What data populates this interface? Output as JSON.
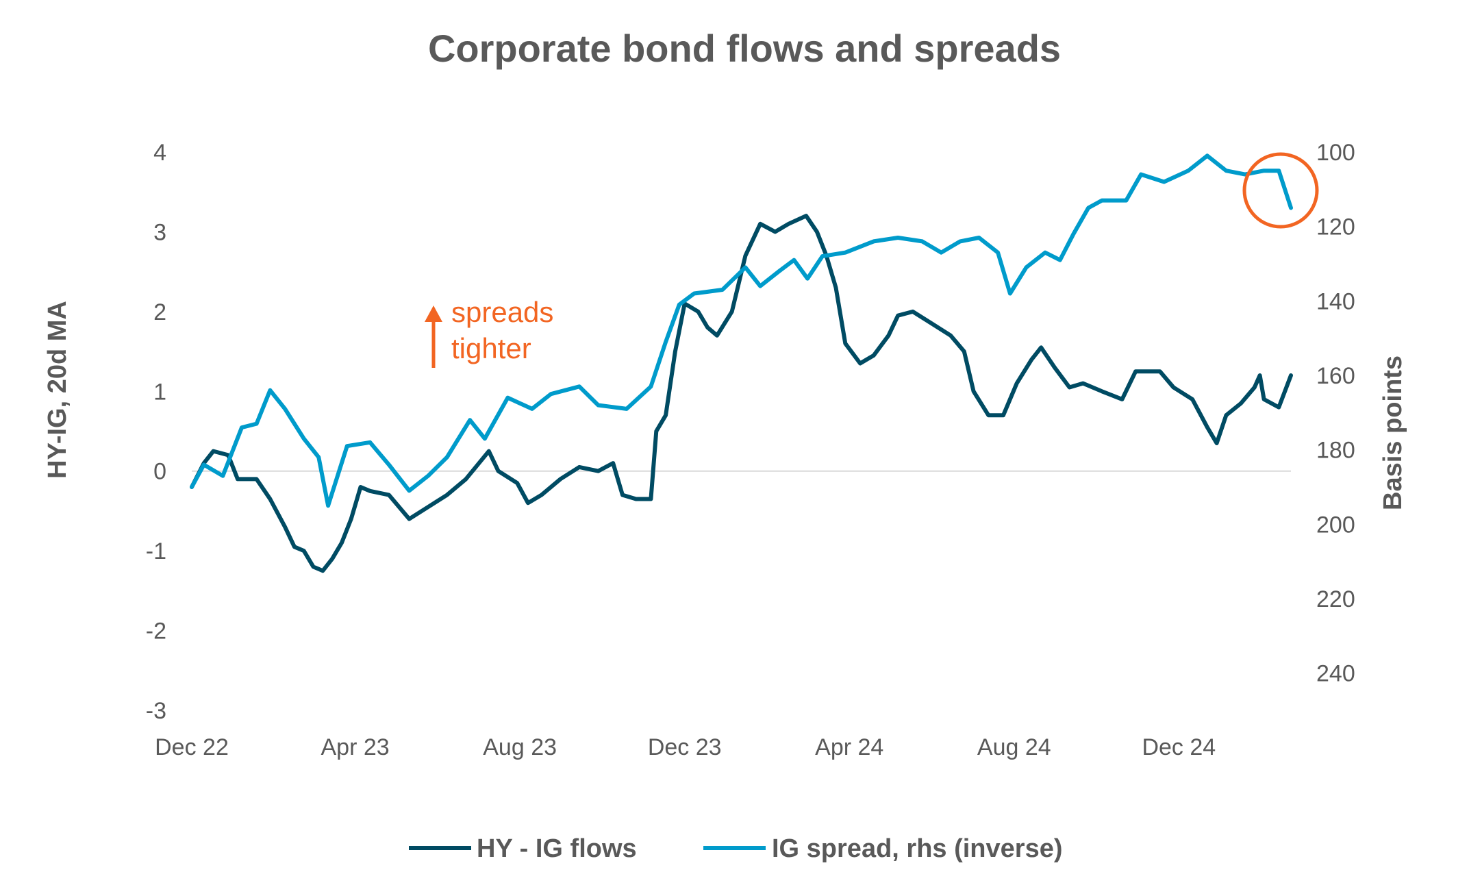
{
  "chart_data": {
    "type": "line",
    "title": "Corporate bond flows and spreads",
    "ylabel": "HY-IG, 20d MA",
    "y2label": "Basis points",
    "ylim": [
      -3,
      4
    ],
    "y2lim": [
      100,
      250
    ],
    "y2_inverted": true,
    "yticks": [
      "-3",
      "-2",
      "-1",
      "0",
      "1",
      "2",
      "3",
      "4"
    ],
    "y2ticks": [
      "100",
      "120",
      "140",
      "160",
      "180",
      "200",
      "220",
      "240"
    ],
    "xlim": [
      "2022-12-01",
      "2025-02-22"
    ],
    "xticks": [
      {
        "date": "2022-12-01",
        "label": "Dec 22"
      },
      {
        "date": "2023-04-01",
        "label": "Apr 23"
      },
      {
        "date": "2023-08-01",
        "label": "Aug 23"
      },
      {
        "date": "2023-12-01",
        "label": "Dec 23"
      },
      {
        "date": "2024-04-01",
        "label": "Apr 24"
      },
      {
        "date": "2024-08-01",
        "label": "Aug 24"
      },
      {
        "date": "2024-12-01",
        "label": "Dec 24"
      }
    ],
    "grid": false,
    "zero_line": true,
    "legend_position": "bottom",
    "annotation": {
      "text_line1": "spreads",
      "text_line2": "tighter",
      "arrow": "up",
      "color": "#F26522"
    },
    "highlight_circle": {
      "around": "latest IG spread values",
      "color": "#F26522"
    },
    "series": [
      {
        "name": "HY - IG flows",
        "axis": "left",
        "color": "#004B63",
        "points": [
          [
            "2022-12-01",
            -0.2
          ],
          [
            "2022-12-10",
            0.1
          ],
          [
            "2022-12-17",
            0.25
          ],
          [
            "2022-12-28",
            0.2
          ],
          [
            "2023-01-04",
            -0.1
          ],
          [
            "2023-01-18",
            -0.1
          ],
          [
            "2023-01-28",
            -0.35
          ],
          [
            "2023-02-08",
            -0.7
          ],
          [
            "2023-02-15",
            -0.95
          ],
          [
            "2023-02-22",
            -1.0
          ],
          [
            "2023-03-01",
            -1.2
          ],
          [
            "2023-03-08",
            -1.25
          ],
          [
            "2023-03-15",
            -1.1
          ],
          [
            "2023-03-22",
            -0.9
          ],
          [
            "2023-03-29",
            -0.6
          ],
          [
            "2023-04-05",
            -0.2
          ],
          [
            "2023-04-12",
            -0.25
          ],
          [
            "2023-04-26",
            -0.3
          ],
          [
            "2023-05-11",
            -0.6
          ],
          [
            "2023-05-25",
            -0.45
          ],
          [
            "2023-06-08",
            -0.3
          ],
          [
            "2023-06-22",
            -0.1
          ],
          [
            "2023-07-09",
            0.25
          ],
          [
            "2023-07-16",
            0.0
          ],
          [
            "2023-07-30",
            -0.15
          ],
          [
            "2023-08-07",
            -0.4
          ],
          [
            "2023-08-17",
            -0.3
          ],
          [
            "2023-08-31",
            -0.1
          ],
          [
            "2023-09-14",
            0.05
          ],
          [
            "2023-09-28",
            0.0
          ],
          [
            "2023-10-09",
            0.1
          ],
          [
            "2023-10-16",
            -0.3
          ],
          [
            "2023-10-26",
            -0.35
          ],
          [
            "2023-11-06",
            -0.35
          ],
          [
            "2023-11-10",
            0.5
          ],
          [
            "2023-11-17",
            0.7
          ],
          [
            "2023-11-24",
            1.5
          ],
          [
            "2023-12-01",
            2.1
          ],
          [
            "2023-12-11",
            2.0
          ],
          [
            "2023-12-18",
            1.8
          ],
          [
            "2023-12-25",
            1.7
          ],
          [
            "2024-01-05",
            2.0
          ],
          [
            "2024-01-15",
            2.7
          ],
          [
            "2024-01-26",
            3.1
          ],
          [
            "2024-02-06",
            3.0
          ],
          [
            "2024-02-16",
            3.1
          ],
          [
            "2024-02-29",
            3.2
          ],
          [
            "2024-03-08",
            3.0
          ],
          [
            "2024-03-15",
            2.7
          ],
          [
            "2024-03-22",
            2.3
          ],
          [
            "2024-03-29",
            1.6
          ],
          [
            "2024-04-09",
            1.35
          ],
          [
            "2024-04-19",
            1.45
          ],
          [
            "2024-04-30",
            1.7
          ],
          [
            "2024-05-07",
            1.95
          ],
          [
            "2024-05-18",
            2.0
          ],
          [
            "2024-06-01",
            1.85
          ],
          [
            "2024-06-15",
            1.7
          ],
          [
            "2024-06-25",
            1.5
          ],
          [
            "2024-07-02",
            1.0
          ],
          [
            "2024-07-13",
            0.7
          ],
          [
            "2024-07-24",
            0.7
          ],
          [
            "2024-08-03",
            1.1
          ],
          [
            "2024-08-14",
            1.4
          ],
          [
            "2024-08-21",
            1.55
          ],
          [
            "2024-08-31",
            1.3
          ],
          [
            "2024-09-11",
            1.05
          ],
          [
            "2024-09-21",
            1.1
          ],
          [
            "2024-10-05",
            1.0
          ],
          [
            "2024-10-20",
            0.9
          ],
          [
            "2024-10-30",
            1.25
          ],
          [
            "2024-11-17",
            1.25
          ],
          [
            "2024-11-27",
            1.05
          ],
          [
            "2024-12-11",
            0.9
          ],
          [
            "2024-12-22",
            0.55
          ],
          [
            "2024-12-29",
            0.35
          ],
          [
            "2025-01-05",
            0.7
          ],
          [
            "2025-01-16",
            0.85
          ],
          [
            "2025-01-26",
            1.05
          ],
          [
            "2025-01-30",
            1.2
          ],
          [
            "2025-02-02",
            0.9
          ],
          [
            "2025-02-13",
            0.8
          ],
          [
            "2025-02-22",
            1.2
          ]
        ]
      },
      {
        "name": "IG spread, rhs (inverse)",
        "axis": "right",
        "color": "#009BCB",
        "points": [
          [
            "2022-12-01",
            190
          ],
          [
            "2022-12-10",
            184
          ],
          [
            "2022-12-24",
            187
          ],
          [
            "2023-01-07",
            174
          ],
          [
            "2023-01-18",
            173
          ],
          [
            "2023-01-28",
            164
          ],
          [
            "2023-02-08",
            169
          ],
          [
            "2023-02-22",
            177
          ],
          [
            "2023-03-05",
            182
          ],
          [
            "2023-03-12",
            195
          ],
          [
            "2023-03-26",
            179
          ],
          [
            "2023-04-12",
            178
          ],
          [
            "2023-04-26",
            184
          ],
          [
            "2023-05-11",
            191
          ],
          [
            "2023-05-25",
            187
          ],
          [
            "2023-06-08",
            182
          ],
          [
            "2023-06-25",
            172
          ],
          [
            "2023-07-06",
            177
          ],
          [
            "2023-07-23",
            166
          ],
          [
            "2023-08-10",
            169
          ],
          [
            "2023-08-24",
            165
          ],
          [
            "2023-09-14",
            163
          ],
          [
            "2023-09-28",
            168
          ],
          [
            "2023-10-19",
            169
          ],
          [
            "2023-11-06",
            163
          ],
          [
            "2023-11-17",
            151
          ],
          [
            "2023-11-27",
            141
          ],
          [
            "2023-12-08",
            138
          ],
          [
            "2023-12-29",
            137
          ],
          [
            "2024-01-15",
            131
          ],
          [
            "2024-01-26",
            136
          ],
          [
            "2024-02-09",
            132
          ],
          [
            "2024-02-20",
            129
          ],
          [
            "2024-03-01",
            134
          ],
          [
            "2024-03-12",
            128
          ],
          [
            "2024-03-29",
            127
          ],
          [
            "2024-04-19",
            124
          ],
          [
            "2024-05-07",
            123
          ],
          [
            "2024-05-25",
            124
          ],
          [
            "2024-06-08",
            127
          ],
          [
            "2024-06-22",
            124
          ],
          [
            "2024-07-06",
            123
          ],
          [
            "2024-07-20",
            127
          ],
          [
            "2024-07-29",
            138
          ],
          [
            "2024-08-10",
            131
          ],
          [
            "2024-08-24",
            127
          ],
          [
            "2024-09-04",
            129
          ],
          [
            "2024-09-14",
            122
          ],
          [
            "2024-09-25",
            115
          ],
          [
            "2024-10-05",
            113
          ],
          [
            "2024-10-23",
            113
          ],
          [
            "2024-11-03",
            106
          ],
          [
            "2024-11-20",
            108
          ],
          [
            "2024-12-08",
            105
          ],
          [
            "2024-12-22",
            101
          ],
          [
            "2025-01-05",
            105
          ],
          [
            "2025-01-19",
            106
          ],
          [
            "2025-02-02",
            105
          ],
          [
            "2025-02-13",
            105
          ],
          [
            "2025-02-22",
            115
          ]
        ]
      }
    ]
  }
}
